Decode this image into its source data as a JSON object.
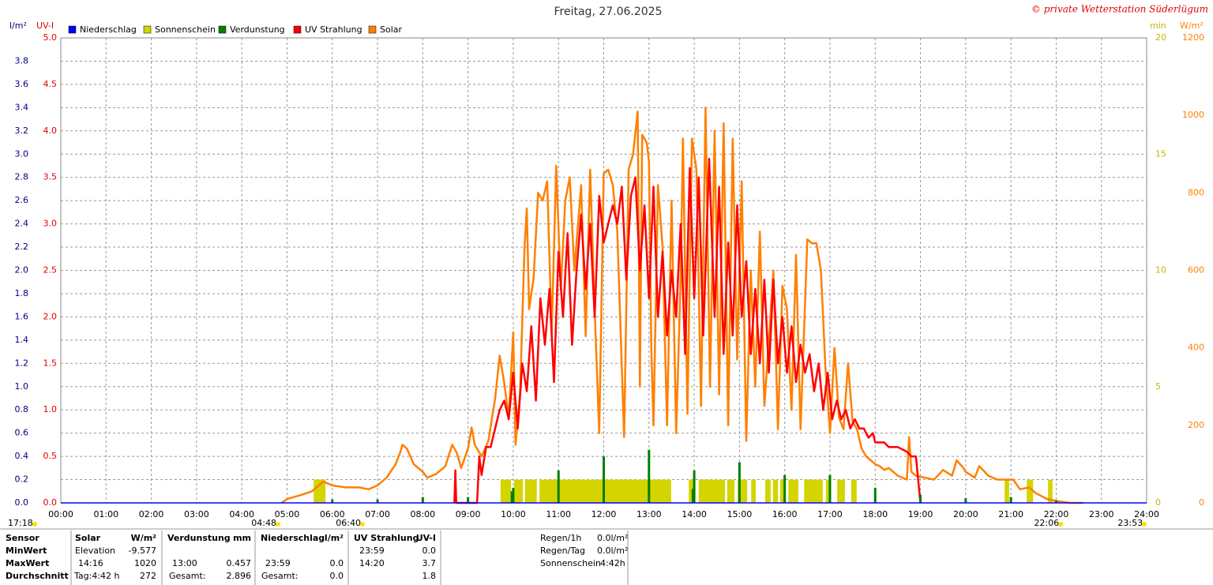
{
  "chart_data": {
    "type": "line",
    "title": "Freitag, 27.06.2025",
    "subtitle": "© private Wetterstation Süderlügum",
    "y_label": "l/m²",
    "y2_label": "UV-I",
    "y3_label": "min",
    "y4_label": "W/m²",
    "xlim": [
      0,
      24
    ],
    "xticks": [
      {
        "value": 0,
        "label": "00:00"
      },
      {
        "value": 1,
        "label": "01:00"
      },
      {
        "value": 2,
        "label": "02:00"
      },
      {
        "value": 3,
        "label": "03:00"
      },
      {
        "value": 4,
        "label": "04:00"
      },
      {
        "value": 5,
        "label": "05:00"
      },
      {
        "value": 6,
        "label": "06:00"
      },
      {
        "value": 7,
        "label": "07:00"
      },
      {
        "value": 8,
        "label": "08:00"
      },
      {
        "value": 9,
        "label": "09:00"
      },
      {
        "value": 10,
        "label": "10:00"
      },
      {
        "value": 11,
        "label": "11:00"
      },
      {
        "value": 12,
        "label": "12:00"
      },
      {
        "value": 13,
        "label": "13:00"
      },
      {
        "value": 14,
        "label": "14:00"
      },
      {
        "value": 15,
        "label": "15:00"
      },
      {
        "value": 16,
        "label": "16:00"
      },
      {
        "value": 17,
        "label": "17:00"
      },
      {
        "value": 18,
        "label": "18:00"
      },
      {
        "value": 19,
        "label": "19:00"
      },
      {
        "value": 20,
        "label": "20:00"
      },
      {
        "value": 21,
        "label": "21:00"
      },
      {
        "value": 22,
        "label": "22:00"
      },
      {
        "value": 23,
        "label": "23:00"
      },
      {
        "value": 24,
        "label": "24:00"
      }
    ],
    "ylim": [
      0,
      4
    ],
    "yticks": [
      {
        "value": 0,
        "label": "0.0"
      },
      0.2,
      0.4,
      0.6,
      0.8,
      {
        "value": 1,
        "label": "1.0"
      },
      1.2,
      1.4,
      1.6,
      1.8,
      {
        "value": 2,
        "label": "2.0"
      },
      2.2,
      2.4,
      2.6,
      2.8,
      {
        "value": 3,
        "label": "3.0"
      },
      3.2,
      3.4,
      3.6,
      3.8
    ],
    "y2lim": [
      0,
      5
    ],
    "y2ticks": [
      {
        "value": 0,
        "label": "0.0"
      },
      0.5,
      {
        "value": 1,
        "label": "1.0"
      },
      1.5,
      {
        "value": 2,
        "label": "2.0"
      },
      2.5,
      {
        "value": 3,
        "label": "3.0"
      },
      3.5,
      {
        "value": 4,
        "label": "4.0"
      },
      4.5,
      {
        "value": 5,
        "label": "5.0"
      }
    ],
    "y3lim": [
      0,
      20
    ],
    "y3ticks": [
      0,
      5,
      10,
      15,
      20
    ],
    "y4lim": [
      0,
      1200
    ],
    "y4ticks": [
      0,
      200,
      400,
      600,
      800,
      1000,
      1200
    ],
    "grid": true,
    "annotations": [
      {
        "label": "17:18"
      },
      {
        "x": 4.8,
        "label": "04:48"
      },
      {
        "x": 6.667,
        "label": "06:40"
      },
      {
        "x": 22.1,
        "label": "22:06"
      },
      {
        "x": 23.95,
        "label": "23:53"
      }
    ],
    "series": [
      {
        "name": "Niederschlag",
        "color": "#0000ff",
        "kind": "line",
        "axis": "y",
        "x": [
          0,
          24
        ],
        "values": [
          0,
          0
        ]
      },
      {
        "name": "Sonnenschein",
        "color": "#d4d400",
        "kind": "span",
        "axis": "y3",
        "x_start": [
          5.59,
          9.72,
          10.02,
          10.26,
          10.58,
          13.88,
          14.1,
          14.73,
          14.96,
          15.26,
          15.57,
          15.74,
          15.9,
          16.08,
          16.43,
          16.91,
          17.16,
          17.47,
          20.86,
          21.35,
          21.82
        ],
        "x_end": [
          5.85,
          9.95,
          10.21,
          10.52,
          13.49,
          13.98,
          14.68,
          14.89,
          15.17,
          15.36,
          15.69,
          15.85,
          16.01,
          16.3,
          16.84,
          17.02,
          17.33,
          17.59,
          20.96,
          21.49,
          21.92
        ],
        "values": [
          1,
          1,
          1,
          1,
          1,
          1,
          1,
          1,
          1,
          1,
          1,
          1,
          1,
          1,
          1,
          1,
          1,
          1,
          1,
          1,
          1
        ]
      },
      {
        "name": "Verdunstung",
        "color": "#008000",
        "kind": "spike",
        "axis": "y",
        "x": [
          6,
          7,
          8,
          9,
          9.97,
          10,
          11,
          12,
          13,
          13.97,
          14,
          15,
          16,
          17,
          18,
          19,
          20,
          21,
          22
        ],
        "values": [
          0.03,
          0.03,
          0.05,
          0.05,
          0.1,
          0.13,
          0.28,
          0.4,
          0.457,
          0.12,
          0.28,
          0.35,
          0.24,
          0.24,
          0.13,
          0.07,
          0.04,
          0.05,
          0.02
        ]
      },
      {
        "name": "UV Strahlung",
        "color": "#ff0000",
        "kind": "line",
        "axis": "y2",
        "x": [
          8.7,
          8.72,
          8.74,
          9.2,
          9.25,
          9.3,
          9.4,
          9.5,
          9.6,
          9.7,
          9.8,
          9.9,
          10,
          10.1,
          10.2,
          10.3,
          10.4,
          10.5,
          10.6,
          10.7,
          10.8,
          10.9,
          11,
          11.1,
          11.2,
          11.3,
          11.4,
          11.5,
          11.6,
          11.7,
          11.8,
          11.9,
          12,
          12.1,
          12.2,
          12.3,
          12.4,
          12.5,
          12.6,
          12.7,
          12.8,
          12.9,
          13,
          13.1,
          13.2,
          13.3,
          13.4,
          13.5,
          13.6,
          13.7,
          13.8,
          13.9,
          14,
          14.1,
          14.2,
          14.33,
          14.45,
          14.55,
          14.65,
          14.75,
          14.85,
          14.95,
          15.05,
          15.15,
          15.25,
          15.35,
          15.45,
          15.55,
          15.65,
          15.75,
          15.85,
          15.95,
          16.05,
          16.15,
          16.25,
          16.35,
          16.45,
          16.55,
          16.65,
          16.75,
          16.85,
          16.95,
          17.05,
          17.15,
          17.25,
          17.35,
          17.45,
          17.55,
          17.65,
          17.75,
          17.85,
          17.95,
          18,
          18.2,
          18.3,
          18.5,
          18.7,
          18.8,
          18.9,
          19
        ],
        "values": [
          0,
          0.35,
          0,
          0,
          0.5,
          0.3,
          0.6,
          0.6,
          0.8,
          1.0,
          1.1,
          0.9,
          1.4,
          0.8,
          1.5,
          1.2,
          1.9,
          1.1,
          2.2,
          1.7,
          2.3,
          1.3,
          2.7,
          2.0,
          2.9,
          1.7,
          2.5,
          3.1,
          2.3,
          3.0,
          2.0,
          3.3,
          2.8,
          3.0,
          3.2,
          3.0,
          3.4,
          2.4,
          3.3,
          3.5,
          2.5,
          3.2,
          2.2,
          3.4,
          2.0,
          2.7,
          1.8,
          2.5,
          2.0,
          3.0,
          1.6,
          3.6,
          2.2,
          3.5,
          1.8,
          3.7,
          2.0,
          3.4,
          1.6,
          2.8,
          1.8,
          3.2,
          2.0,
          2.6,
          1.6,
          2.3,
          1.5,
          2.4,
          1.4,
          2.4,
          1.5,
          2.0,
          1.4,
          1.9,
          1.3,
          1.7,
          1.4,
          1.6,
          1.2,
          1.5,
          1.0,
          1.4,
          0.9,
          1.1,
          0.9,
          1.0,
          0.8,
          0.9,
          0.8,
          0.8,
          0.7,
          0.75,
          0.65,
          0.65,
          0.6,
          0.6,
          0.55,
          0.5,
          0.5,
          0
        ]
      },
      {
        "name": "Solar",
        "color": "#ff8000",
        "kind": "line",
        "axis": "y4",
        "x": [
          4.88,
          5.0,
          5.3,
          5.55,
          5.8,
          6.0,
          6.3,
          6.6,
          6.8,
          7.0,
          7.2,
          7.4,
          7.5,
          7.55,
          7.65,
          7.8,
          8.0,
          8.1,
          8.3,
          8.5,
          8.65,
          8.75,
          8.85,
          9.0,
          9.08,
          9.15,
          9.3,
          9.45,
          9.6,
          9.7,
          9.8,
          9.9,
          10.0,
          10.05,
          10.15,
          10.25,
          10.3,
          10.35,
          10.45,
          10.55,
          10.65,
          10.75,
          10.85,
          10.95,
          11.05,
          11.15,
          11.25,
          11.35,
          11.5,
          11.6,
          11.7,
          11.8,
          11.9,
          12.0,
          12.1,
          12.2,
          12.3,
          12.45,
          12.55,
          12.65,
          12.75,
          12.8,
          12.85,
          12.95,
          13.0,
          13.05,
          13.1,
          13.2,
          13.3,
          13.4,
          13.5,
          13.6,
          13.7,
          13.75,
          13.85,
          13.95,
          14.05,
          14.15,
          14.25,
          14.35,
          14.45,
          14.55,
          14.65,
          14.75,
          14.85,
          14.95,
          15.05,
          15.15,
          15.25,
          15.35,
          15.45,
          15.55,
          15.65,
          15.75,
          15.85,
          15.95,
          16.05,
          16.15,
          16.25,
          16.35,
          16.5,
          16.6,
          16.7,
          16.8,
          16.9,
          17.0,
          17.1,
          17.2,
          17.3,
          17.4,
          17.5,
          17.6,
          17.7,
          17.8,
          17.9,
          18.0,
          18.1,
          18.2,
          18.3,
          18.5,
          18.7,
          18.75,
          18.8,
          18.9,
          19.1,
          19.3,
          19.5,
          19.7,
          19.8,
          19.95,
          20.0,
          20.2,
          20.3,
          20.5,
          20.7,
          20.9,
          21.05,
          21.2,
          21.4,
          21.55,
          21.8,
          22.0,
          22.3,
          22.6
        ],
        "values": [
          0,
          10,
          20,
          30,
          55,
          45,
          40,
          40,
          35,
          45,
          65,
          100,
          130,
          150,
          140,
          100,
          80,
          65,
          75,
          95,
          150,
          130,
          90,
          140,
          195,
          150,
          120,
          160,
          270,
          380,
          310,
          220,
          440,
          150,
          280,
          660,
          760,
          500,
          580,
          800,
          780,
          830,
          440,
          870,
          550,
          780,
          840,
          600,
          820,
          430,
          860,
          500,
          180,
          850,
          860,
          820,
          700,
          170,
          860,
          900,
          1010,
          300,
          950,
          930,
          880,
          400,
          200,
          820,
          660,
          200,
          780,
          180,
          580,
          940,
          230,
          940,
          860,
          250,
          1020,
          300,
          960,
          280,
          980,
          200,
          940,
          370,
          830,
          160,
          600,
          300,
          700,
          250,
          420,
          600,
          190,
          560,
          500,
          240,
          640,
          190,
          680,
          670,
          670,
          600,
          350,
          180,
          400,
          220,
          190,
          360,
          210,
          190,
          140,
          120,
          110,
          100,
          95,
          85,
          90,
          70,
          60,
          170,
          80,
          70,
          65,
          60,
          85,
          70,
          110,
          90,
          80,
          65,
          95,
          70,
          60,
          60,
          60,
          35,
          40,
          25,
          10,
          5,
          0,
          0
        ]
      }
    ]
  },
  "stats": {
    "labels": [
      "Sensor",
      "MinWert",
      "MaxWert",
      "Durchschnitt"
    ],
    "solar": {
      "header": [
        "Solar",
        "W/m²"
      ],
      "min": [
        "Elevation",
        "-9.577"
      ],
      "max": [
        "14:16",
        "1020"
      ],
      "avg": [
        "Tag:4:42 h",
        "272"
      ]
    },
    "evap": {
      "header": [
        "Verdunstung",
        "mm"
      ],
      "max": [
        "13:00",
        "0.457"
      ],
      "avg": [
        "Gesamt:",
        "2.896"
      ]
    },
    "rain": {
      "header": [
        "Niederschlag",
        "l/m²"
      ],
      "max": [
        "23:59",
        "0.0"
      ],
      "avg": [
        "Gesamt:",
        "0.0"
      ]
    },
    "uv": {
      "header": [
        "UV Strahlung",
        "UV-I"
      ],
      "min": [
        "23:59",
        "0.0"
      ],
      "max": [
        "14:20",
        "3.7"
      ],
      "avg": [
        "1.8"
      ]
    }
  },
  "summary": [
    [
      "Regen/1h",
      "0.0l/m²"
    ],
    [
      "Regen/Tag",
      "0.0l/m²"
    ],
    [
      "Sonnenschein",
      "4:42h"
    ]
  ]
}
